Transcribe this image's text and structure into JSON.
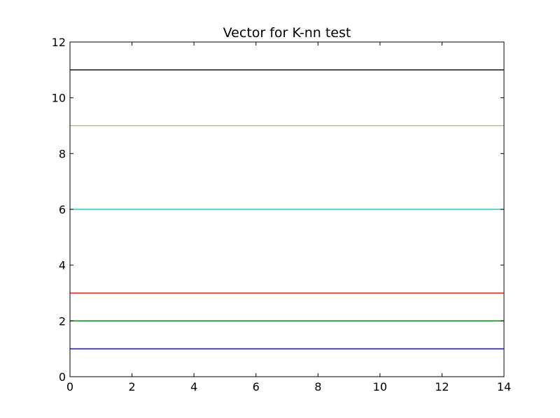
{
  "chart_data": {
    "type": "line",
    "title": "Vector for K-nn test",
    "xlabel": "",
    "ylabel": "",
    "xlim": [
      0,
      14
    ],
    "ylim": [
      0,
      12
    ],
    "xticks": [
      "0",
      "2",
      "4",
      "6",
      "8",
      "10",
      "12",
      "14"
    ],
    "yticks": [
      "0",
      "2",
      "4",
      "6",
      "8",
      "10",
      "12"
    ],
    "grid": false,
    "legend": "none",
    "series": [
      {
        "color": "#0000ff",
        "x": [
          0,
          14
        ],
        "y": [
          1,
          1
        ]
      },
      {
        "color": "#008000",
        "x": [
          0,
          14
        ],
        "y": [
          2,
          2
        ]
      },
      {
        "color": "#ff0000",
        "x": [
          0,
          14
        ],
        "y": [
          3,
          3
        ]
      },
      {
        "color": "#00bfbf",
        "x": [
          0,
          14
        ],
        "y": [
          6,
          6
        ]
      },
      {
        "color": "#bfbf00",
        "x": [
          0,
          14
        ],
        "y": [
          9,
          9
        ]
      },
      {
        "color": "#000000",
        "x": [
          0,
          14
        ],
        "y": [
          11,
          11
        ]
      }
    ]
  }
}
